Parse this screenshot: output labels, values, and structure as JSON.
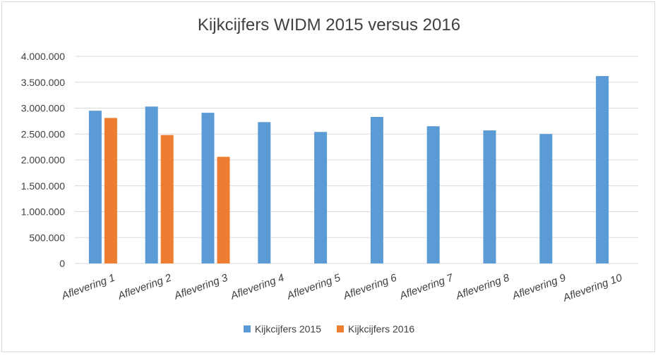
{
  "chart_data": {
    "type": "bar",
    "title": "Kijkcijfers WIDM 2015 versus 2016",
    "categories": [
      "Aflevering 1",
      "Aflevering 2",
      "Aflevering 3",
      "Aflevering 4",
      "Aflevering 5",
      "Aflevering 6",
      "Aflevering 7",
      "Aflevering 8",
      "Aflevering 9",
      "Aflevering 10"
    ],
    "series": [
      {
        "name": "Kijkcijfers 2015",
        "color": "#5b9bd5",
        "values": [
          2950000,
          3030000,
          2910000,
          2730000,
          2540000,
          2830000,
          2650000,
          2570000,
          2500000,
          3620000
        ]
      },
      {
        "name": "Kijkcijfers 2016",
        "color": "#ed7d31",
        "values": [
          2810000,
          2480000,
          2060000,
          null,
          null,
          null,
          null,
          null,
          null,
          null
        ]
      }
    ],
    "ylim": [
      0,
      4000000
    ],
    "y_ticks": [
      "0",
      "500.000",
      "1.000.000",
      "1.500.000",
      "2.000.000",
      "2.500.000",
      "3.000.000",
      "3.500.000",
      "4.000.000"
    ],
    "grid": true,
    "legend_position": "bottom"
  }
}
